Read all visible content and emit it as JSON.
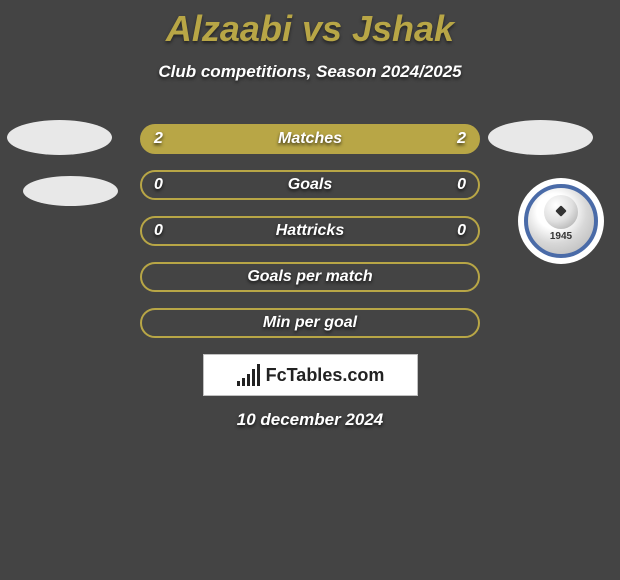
{
  "title": "Alzaabi vs Jshak",
  "subtitle": "Club competitions, Season 2024/2025",
  "rows": [
    {
      "label": "Matches",
      "left": "2",
      "right": "2",
      "fill": "#b8a646",
      "border": "#b8a646"
    },
    {
      "label": "Goals",
      "left": "0",
      "right": "0",
      "fill": "transparent",
      "border": "#b8a646"
    },
    {
      "label": "Hattricks",
      "left": "0",
      "right": "0",
      "fill": "transparent",
      "border": "#b8a646"
    },
    {
      "label": "Goals per match",
      "left": "",
      "right": "",
      "fill": "transparent",
      "border": "#b8a646"
    },
    {
      "label": "Min per goal",
      "left": "",
      "right": "",
      "fill": "transparent",
      "border": "#b8a646"
    }
  ],
  "brand": {
    "icon_heights": [
      5,
      8,
      12,
      17,
      22
    ],
    "icon_color": "#222222",
    "text": "FcTables.com"
  },
  "date": "10 december 2024",
  "badge_year": "1945",
  "colors": {
    "background": "#444444",
    "title": "#b8a646",
    "text": "#ffffff",
    "accent": "#b8a646",
    "badge_border": "#4a6ba8"
  }
}
